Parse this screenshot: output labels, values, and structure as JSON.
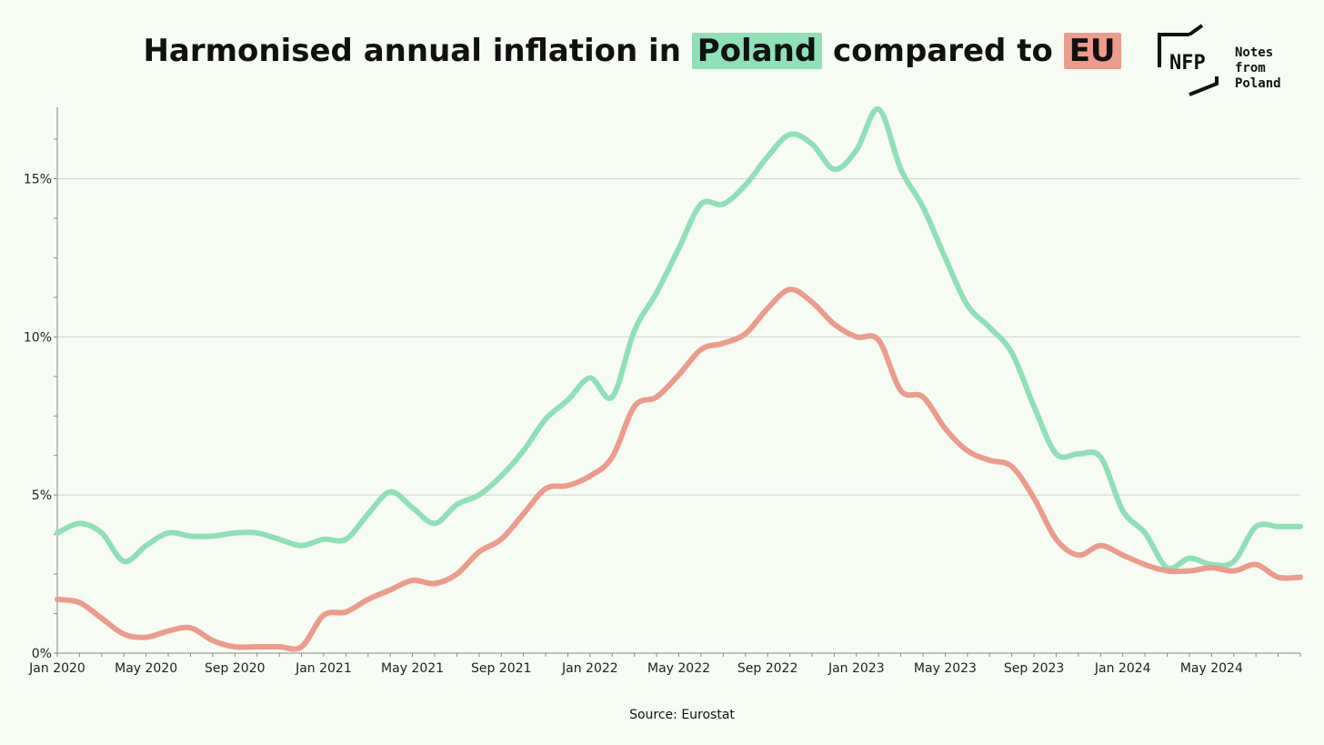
{
  "title": {
    "prefix": "Harmonised annual inflation in ",
    "poland": "Poland",
    "middle": " compared to ",
    "eu": "EU"
  },
  "logo": {
    "mark": "NFP",
    "line1": "Notes from",
    "line2": "Poland"
  },
  "source": "Source: Eurostat",
  "colors": {
    "poland": "#8fe0b7",
    "eu": "#ec9b8c",
    "grid": "#cfd3cf",
    "axis": "#888888"
  },
  "chart_data": {
    "type": "line",
    "title": "Harmonised annual inflation in Poland compared to EU",
    "xlabel": "",
    "ylabel": "",
    "ylim": [
      0,
      17.2
    ],
    "yticks": [
      0,
      5,
      10,
      15
    ],
    "ytick_labels": [
      "0%",
      "5%",
      "10%",
      "15%"
    ],
    "grid": true,
    "x_tick_labels": [
      "Jan 2020",
      "May 2020",
      "Sep 2020",
      "Jan 2021",
      "May 2021",
      "Sep 2021",
      "Jan 2022",
      "May 2022",
      "Sep 2022",
      "Jan 2023",
      "May 2023",
      "Sep 2023",
      "Jan 2024",
      "May 2024"
    ],
    "x": [
      "Jan 2020",
      "Feb 2020",
      "Mar 2020",
      "Apr 2020",
      "May 2020",
      "Jun 2020",
      "Jul 2020",
      "Aug 2020",
      "Sep 2020",
      "Oct 2020",
      "Nov 2020",
      "Dec 2020",
      "Jan 2021",
      "Feb 2021",
      "Mar 2021",
      "Apr 2021",
      "May 2021",
      "Jun 2021",
      "Jul 2021",
      "Aug 2021",
      "Sep 2021",
      "Oct 2021",
      "Nov 2021",
      "Dec 2021",
      "Jan 2022",
      "Feb 2022",
      "Mar 2022",
      "Apr 2022",
      "May 2022",
      "Jun 2022",
      "Jul 2022",
      "Aug 2022",
      "Sep 2022",
      "Oct 2022",
      "Nov 2022",
      "Dec 2022",
      "Jan 2023",
      "Feb 2023",
      "Mar 2023",
      "Apr 2023",
      "May 2023",
      "Jun 2023",
      "Jul 2023",
      "Aug 2023",
      "Sep 2023",
      "Oct 2023",
      "Nov 2023",
      "Dec 2023",
      "Jan 2024",
      "Feb 2024",
      "Mar 2024",
      "Apr 2024",
      "May 2024",
      "Jun 2024",
      "Jul 2024",
      "Aug 2024",
      "Sep 2024"
    ],
    "series": [
      {
        "name": "Poland",
        "values": [
          3.8,
          4.1,
          3.8,
          2.9,
          3.4,
          3.8,
          3.7,
          3.7,
          3.8,
          3.8,
          3.6,
          3.4,
          3.6,
          3.6,
          4.4,
          5.1,
          4.6,
          4.1,
          4.7,
          5.0,
          5.6,
          6.4,
          7.4,
          8.0,
          8.7,
          8.1,
          10.2,
          11.4,
          12.8,
          14.2,
          14.2,
          14.8,
          15.7,
          16.4,
          16.1,
          15.3,
          15.9,
          17.2,
          15.3,
          14.1,
          12.5,
          11.0,
          10.3,
          9.5,
          7.8,
          6.3,
          6.3,
          6.2,
          4.5,
          3.8,
          2.7,
          3.0,
          2.8,
          2.9,
          4.0,
          4.0,
          4.0
        ]
      },
      {
        "name": "EU",
        "values": [
          1.7,
          1.6,
          1.1,
          0.6,
          0.5,
          0.7,
          0.8,
          0.4,
          0.2,
          0.2,
          0.2,
          0.2,
          1.2,
          1.3,
          1.7,
          2.0,
          2.3,
          2.2,
          2.5,
          3.2,
          3.6,
          4.4,
          5.2,
          5.3,
          5.6,
          6.2,
          7.8,
          8.1,
          8.8,
          9.6,
          9.8,
          10.1,
          10.9,
          11.5,
          11.1,
          10.4,
          10.0,
          9.9,
          8.3,
          8.1,
          7.1,
          6.4,
          6.1,
          5.9,
          4.9,
          3.6,
          3.1,
          3.4,
          3.1,
          2.8,
          2.6,
          2.6,
          2.7,
          2.6,
          2.8,
          2.4,
          2.4
        ]
      }
    ]
  }
}
